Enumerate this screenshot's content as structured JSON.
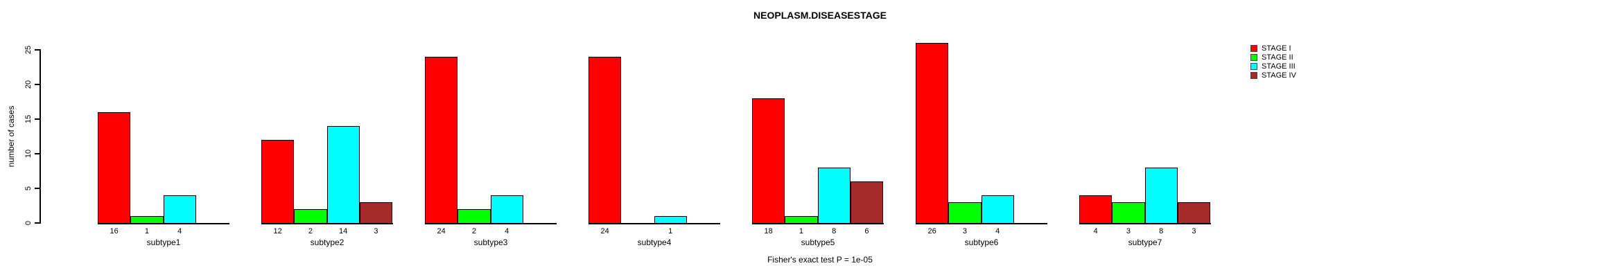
{
  "title": "NEOPLASM.DISEASESTAGE",
  "y_axis_title": "number of cases",
  "caption": "Fisher's exact test P = 1e-05",
  "legend": [
    {
      "label": "STAGE I",
      "color": "#FF0000"
    },
    {
      "label": "STAGE II",
      "color": "#00FF00"
    },
    {
      "label": "STAGE III",
      "color": "#00FFFF"
    },
    {
      "label": "STAGE IV",
      "color": "#A52A2A"
    }
  ],
  "chart_data": {
    "type": "bar",
    "title": "NEOPLASM.DISEASESTAGE",
    "xlabel": "",
    "ylabel": "number of cases",
    "categories": [
      "subtype1",
      "subtype2",
      "subtype3",
      "subtype4",
      "subtype5",
      "subtype6",
      "subtype7"
    ],
    "series": [
      {
        "name": "STAGE I",
        "color": "#FF0000",
        "values": [
          16,
          12,
          24,
          24,
          18,
          26,
          4
        ]
      },
      {
        "name": "STAGE II",
        "color": "#00FF00",
        "values": [
          1,
          2,
          2,
          0,
          1,
          3,
          3
        ]
      },
      {
        "name": "STAGE III",
        "color": "#00FFFF",
        "values": [
          4,
          14,
          4,
          1,
          8,
          4,
          8
        ]
      },
      {
        "name": "STAGE IV",
        "color": "#A52A2A",
        "values": [
          0,
          3,
          0,
          0,
          6,
          0,
          3
        ]
      }
    ],
    "bar_value_labels_shown": true,
    "y_ticks": [
      0,
      5,
      10,
      15,
      20,
      25
    ],
    "ylim": [
      0,
      25
    ],
    "grid": false,
    "legend_position": "right",
    "annotation": "Fisher's exact test P = 1e-05"
  }
}
